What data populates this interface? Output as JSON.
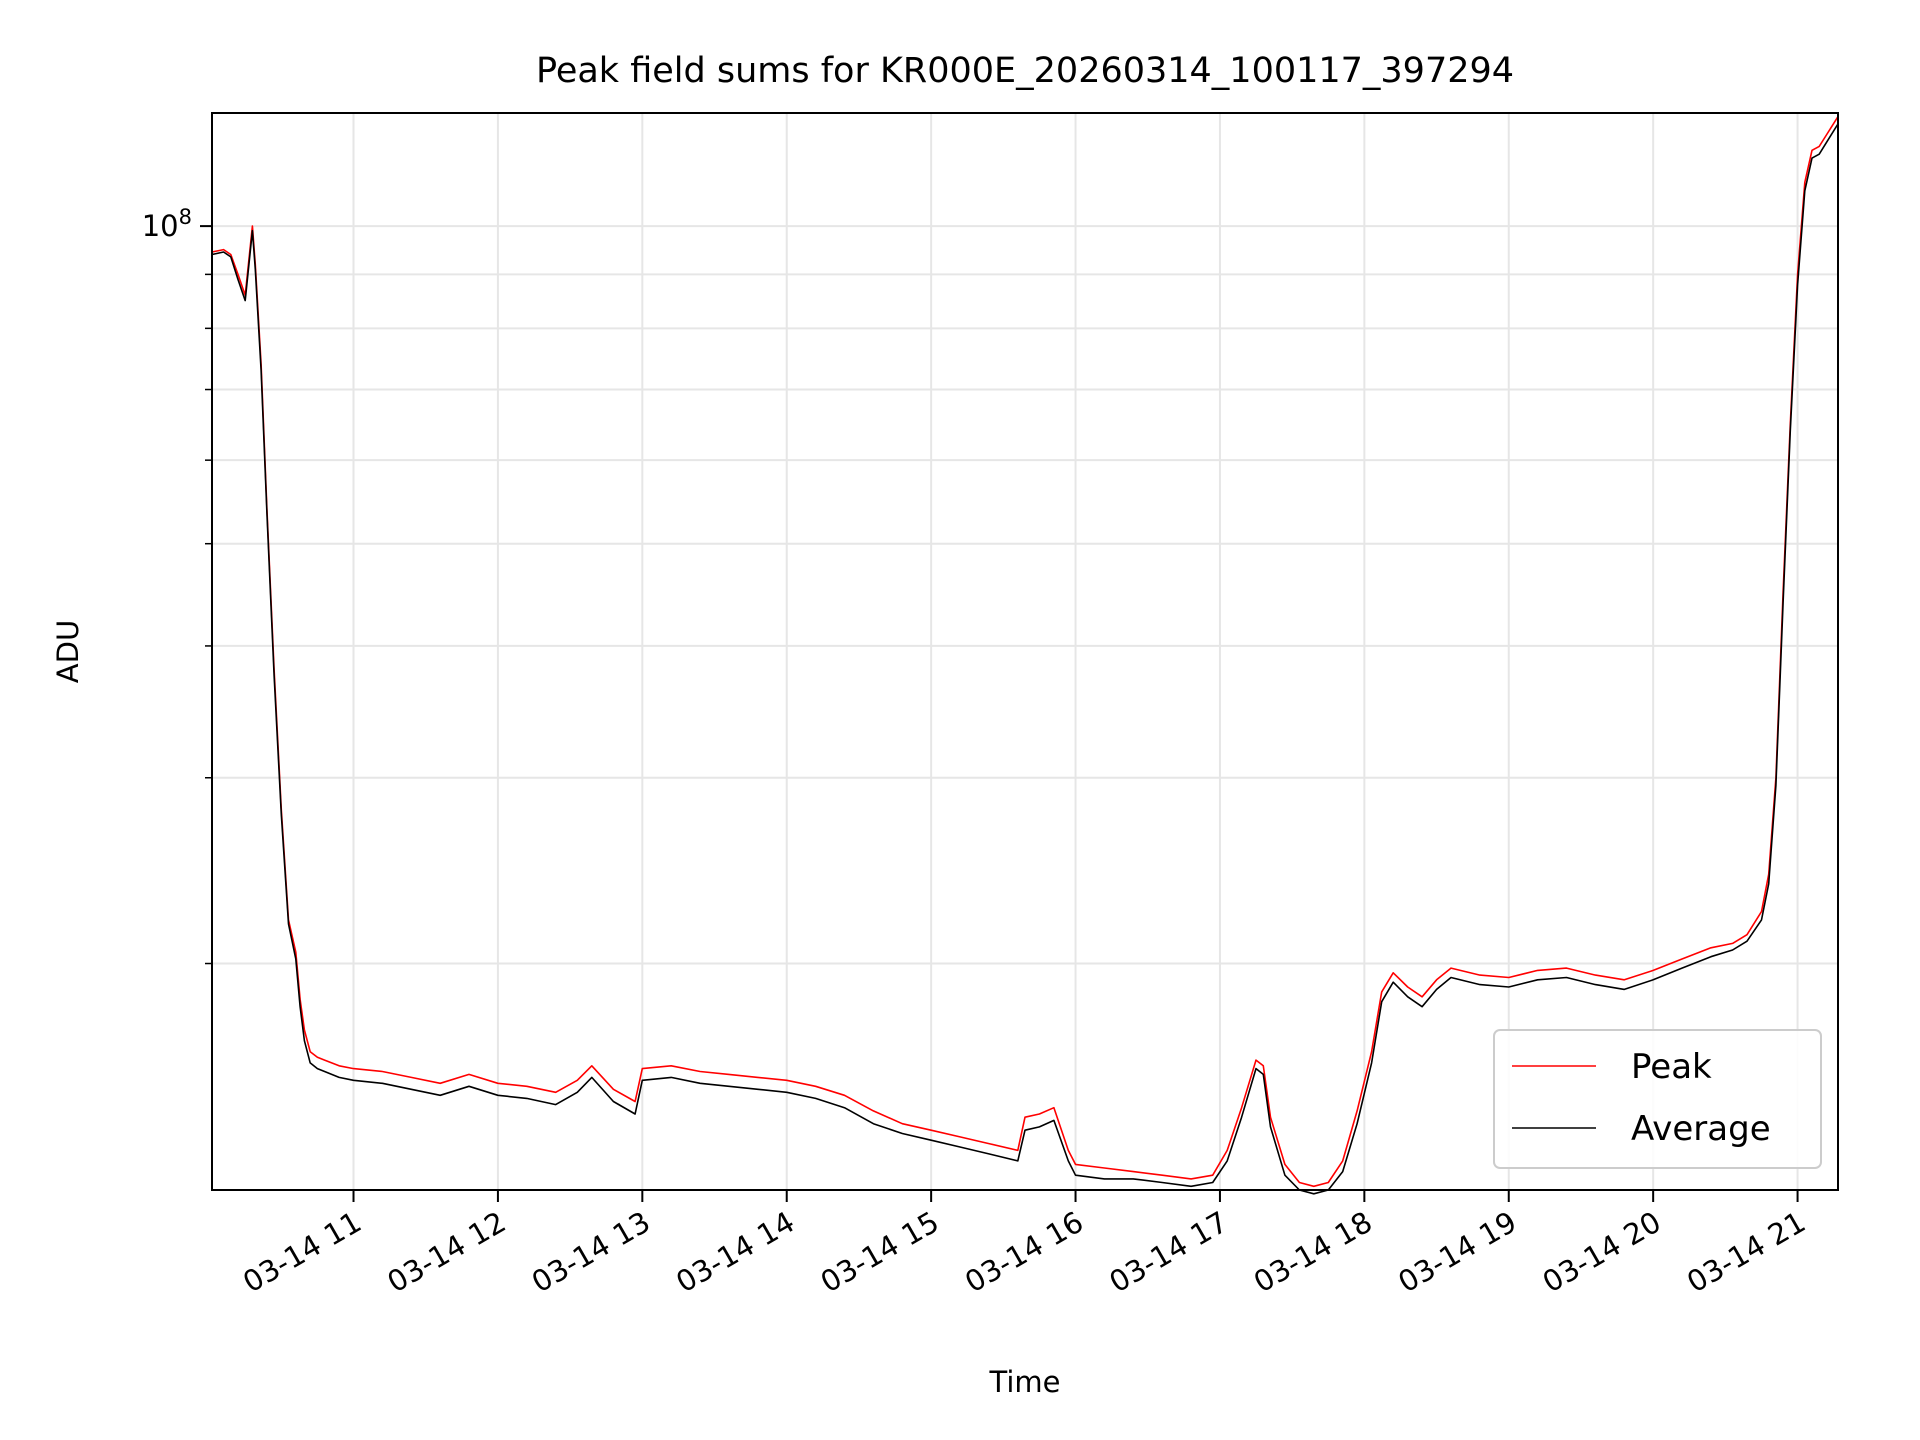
{
  "chart_data": {
    "type": "line",
    "title": "Peak field sums for KR000E_20260314_100117_397294",
    "xlabel": "Time",
    "ylabel": "ADU",
    "yscale": "log",
    "ylim": [
      12200000,
      128000000
    ],
    "xlim": [
      10.02,
      21.28
    ],
    "grid": true,
    "x_tick_hours": [
      11,
      12,
      13,
      14,
      15,
      16,
      17,
      18,
      19,
      20,
      21
    ],
    "x_tick_labels": [
      "03-14 11",
      "03-14 12",
      "03-14 13",
      "03-14 14",
      "03-14 15",
      "03-14 16",
      "03-14 17",
      "03-14 18",
      "03-14 19",
      "03-14 20",
      "03-14 21"
    ],
    "y_major_ticks": [
      {
        "value": 100000000,
        "base": "10",
        "exp": "8"
      }
    ],
    "y_minor_ticks": [
      20000000,
      30000000,
      40000000,
      50000000,
      60000000,
      70000000,
      80000000,
      90000000
    ],
    "legend": {
      "position": "lower-right",
      "entries": [
        "Peak",
        "Average"
      ]
    },
    "series": [
      {
        "name": "Peak",
        "color": "#ff0000",
        "x": [
          10.02,
          10.1,
          10.15,
          10.2,
          10.25,
          10.3,
          10.32,
          10.36,
          10.4,
          10.45,
          10.5,
          10.55,
          10.6,
          10.63,
          10.66,
          10.7,
          10.75,
          10.8,
          10.9,
          11.0,
          11.2,
          11.4,
          11.6,
          11.8,
          12.0,
          12.2,
          12.4,
          12.55,
          12.65,
          12.8,
          12.95,
          13.0,
          13.2,
          13.4,
          13.6,
          13.8,
          14.0,
          14.2,
          14.4,
          14.6,
          14.8,
          15.0,
          15.2,
          15.4,
          15.6,
          15.65,
          15.75,
          15.85,
          15.95,
          16.0,
          16.2,
          16.4,
          16.6,
          16.8,
          16.95,
          17.05,
          17.15,
          17.25,
          17.3,
          17.35,
          17.45,
          17.55,
          17.65,
          17.75,
          17.85,
          17.95,
          18.05,
          18.12,
          18.2,
          18.3,
          18.4,
          18.5,
          18.6,
          18.8,
          19.0,
          19.2,
          19.4,
          19.6,
          19.8,
          20.0,
          20.2,
          20.4,
          20.55,
          20.65,
          20.75,
          20.8,
          20.85,
          20.9,
          20.95,
          21.0,
          21.05,
          21.1,
          21.15,
          21.2,
          21.28
        ],
        "y": [
          94500000,
          95000000,
          94000000,
          90000000,
          86000000,
          100000000,
          92000000,
          74000000,
          54000000,
          38000000,
          28000000,
          22000000,
          20500000,
          18500000,
          17300000,
          16500000,
          16300000,
          16200000,
          16000000,
          15900000,
          15800000,
          15600000,
          15400000,
          15700000,
          15400000,
          15300000,
          15100000,
          15500000,
          16000000,
          15200000,
          14800000,
          15900000,
          16000000,
          15800000,
          15700000,
          15600000,
          15500000,
          15300000,
          15000000,
          14500000,
          14100000,
          13900000,
          13700000,
          13500000,
          13300000,
          14300000,
          14400000,
          14600000,
          13300000,
          12900000,
          12800000,
          12700000,
          12600000,
          12500000,
          12600000,
          13300000,
          14600000,
          16200000,
          16000000,
          14300000,
          12900000,
          12400000,
          12300000,
          12400000,
          13000000,
          14500000,
          16500000,
          18800000,
          19600000,
          19000000,
          18600000,
          19300000,
          19800000,
          19500000,
          19400000,
          19700000,
          19800000,
          19500000,
          19300000,
          19700000,
          20200000,
          20700000,
          20900000,
          21300000,
          22400000,
          24300000,
          30000000,
          45000000,
          65000000,
          90000000,
          110000000,
          118000000,
          119000000,
          122000000,
          127000000
        ]
      },
      {
        "name": "Average",
        "color": "#000000",
        "x": [
          10.02,
          10.1,
          10.15,
          10.2,
          10.25,
          10.3,
          10.32,
          10.36,
          10.4,
          10.45,
          10.5,
          10.55,
          10.6,
          10.63,
          10.66,
          10.7,
          10.75,
          10.8,
          10.9,
          11.0,
          11.2,
          11.4,
          11.6,
          11.8,
          12.0,
          12.2,
          12.4,
          12.55,
          12.65,
          12.8,
          12.95,
          13.0,
          13.2,
          13.4,
          13.6,
          13.8,
          14.0,
          14.2,
          14.4,
          14.6,
          14.8,
          15.0,
          15.2,
          15.4,
          15.6,
          15.65,
          15.75,
          15.85,
          15.95,
          16.0,
          16.2,
          16.4,
          16.6,
          16.8,
          16.95,
          17.05,
          17.15,
          17.25,
          17.3,
          17.35,
          17.45,
          17.55,
          17.65,
          17.75,
          17.85,
          17.95,
          18.05,
          18.12,
          18.2,
          18.3,
          18.4,
          18.5,
          18.6,
          18.8,
          19.0,
          19.2,
          19.4,
          19.6,
          19.8,
          20.0,
          20.2,
          20.4,
          20.55,
          20.65,
          20.75,
          20.8,
          20.85,
          20.9,
          20.95,
          21.0,
          21.05,
          21.1,
          21.15,
          21.2,
          21.28
        ],
        "y": [
          94000000,
          94500000,
          93500000,
          89000000,
          85000000,
          99000000,
          91000000,
          73000000,
          53500000,
          37500000,
          27700000,
          21800000,
          20200000,
          18200000,
          16900000,
          16100000,
          15900000,
          15800000,
          15600000,
          15500000,
          15400000,
          15200000,
          15000000,
          15300000,
          15000000,
          14900000,
          14700000,
          15100000,
          15600000,
          14800000,
          14400000,
          15500000,
          15600000,
          15400000,
          15300000,
          15200000,
          15100000,
          14900000,
          14600000,
          14100000,
          13800000,
          13600000,
          13400000,
          13200000,
          13000000,
          13900000,
          14000000,
          14200000,
          13000000,
          12600000,
          12500000,
          12500000,
          12400000,
          12300000,
          12400000,
          13000000,
          14300000,
          15900000,
          15700000,
          14000000,
          12600000,
          12200000,
          12100000,
          12200000,
          12700000,
          14100000,
          16100000,
          18400000,
          19200000,
          18600000,
          18200000,
          18900000,
          19400000,
          19100000,
          19000000,
          19300000,
          19400000,
          19100000,
          18900000,
          19300000,
          19800000,
          20300000,
          20600000,
          21000000,
          22000000,
          23800000,
          29500000,
          44000000,
          64000000,
          88000000,
          108000000,
          116000000,
          117000000,
          120000000,
          125000000
        ]
      }
    ]
  }
}
